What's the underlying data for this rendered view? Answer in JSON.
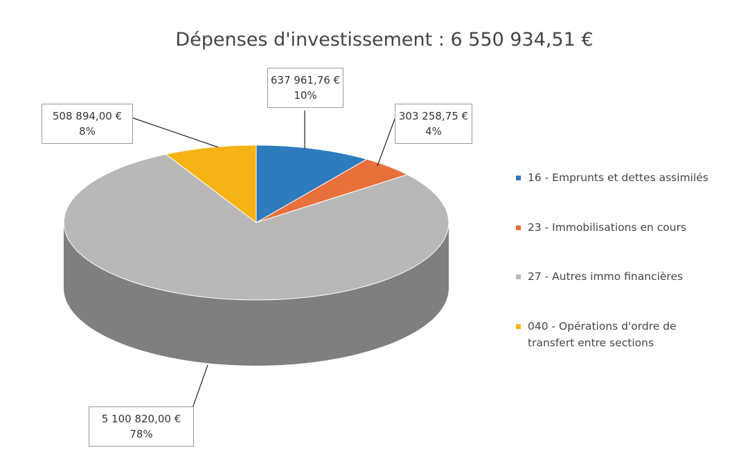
{
  "chart_data": {
    "type": "pie",
    "title": "Dépenses d'investissement : 6 550 934,51 €",
    "categories": [
      "16 - Emprunts et dettes assimilés",
      "23 - Immobilisations en cours",
      "27 - Autres immo financières",
      "040 - Opérations d'ordre de transfert entre sections"
    ],
    "values": [
      637961.76,
      303258.75,
      5100820.0,
      508894.0
    ],
    "value_labels": [
      "637 961,76 €",
      "303 258,75 €",
      "5 100 820,00 €",
      "508 894,00 €"
    ],
    "percent_labels": [
      "10%",
      "4%",
      "78%",
      "8%"
    ],
    "colors": [
      "#2e7bbd",
      "#e8703a",
      "#b8b8b8",
      "#f5b315"
    ],
    "side_colors": [
      "#1f5a8c",
      "#b0522a",
      "#7f7f7f",
      "#b88510"
    ],
    "legend": "right"
  }
}
